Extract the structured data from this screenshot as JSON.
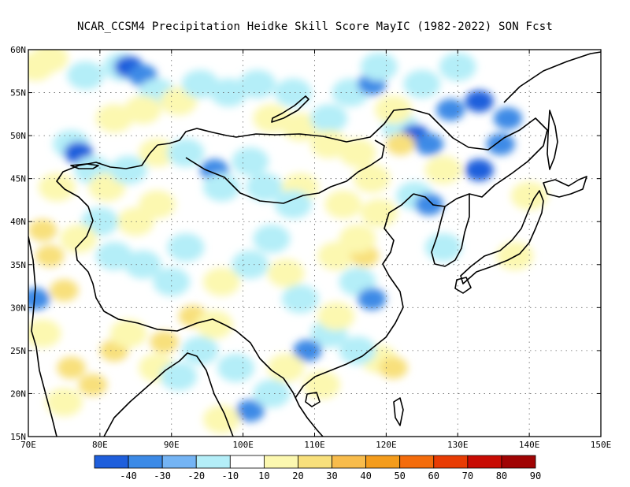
{
  "title": "NCAR_CCSM4  Precipitation Heidke Skill Score MayIC (1982-2022) SON Fcst",
  "lat_labels": [
    "60N",
    "55N",
    "50N",
    "45N",
    "40N",
    "35N",
    "30N",
    "25N",
    "20N",
    "15N"
  ],
  "lon_labels": [
    "70E",
    "80E",
    "90E",
    "100E",
    "110E",
    "120E",
    "130E",
    "140E",
    "150E"
  ],
  "colorbar": {
    "labels": [
      "-40",
      "-30",
      "-20",
      "-10",
      "10",
      "20",
      "30",
      "40",
      "50",
      "60",
      "70",
      "80",
      "90"
    ],
    "colors": [
      "#1f5fdc",
      "#3c8ae6",
      "#74b4f4",
      "#b4eef8",
      "#ffffff",
      "#fcf8b0",
      "#f8e07c",
      "#f8bc4c",
      "#f49c1c",
      "#f46c0c",
      "#e83c04",
      "#c80c04",
      "#a00404"
    ]
  },
  "chart_data": {
    "type": "heatmap",
    "title": "NCAR_CCSM4  Precipitation Heidke Skill Score MayIC (1982-2022) SON Fcst",
    "xlim": [
      70,
      150
    ],
    "ylim": [
      15,
      60
    ],
    "x_ticks": [
      70,
      80,
      90,
      100,
      110,
      120,
      130,
      140,
      150
    ],
    "y_ticks": [
      15,
      20,
      25,
      30,
      35,
      40,
      45,
      50,
      55,
      60
    ],
    "grid": true,
    "region": "land_only",
    "value_range_observed": [
      -40,
      30
    ],
    "patches": [
      {
        "lon": 71,
        "lat": 58,
        "v": 15
      },
      {
        "lon": 73,
        "lat": 59,
        "v": 10
      },
      {
        "lon": 78,
        "lat": 57,
        "v": -10
      },
      {
        "lon": 83,
        "lat": 58,
        "v": -10
      },
      {
        "lon": 84,
        "lat": 58,
        "v": -30
      },
      {
        "lon": 86,
        "lat": 57,
        "v": -20
      },
      {
        "lon": 88,
        "lat": 55,
        "v": -10
      },
      {
        "lon": 82,
        "lat": 52,
        "v": 10
      },
      {
        "lon": 86,
        "lat": 53,
        "v": 15
      },
      {
        "lon": 91,
        "lat": 54,
        "v": 15
      },
      {
        "lon": 94,
        "lat": 56,
        "v": -10
      },
      {
        "lon": 98,
        "lat": 55,
        "v": -10
      },
      {
        "lon": 102,
        "lat": 56,
        "v": -10
      },
      {
        "lon": 107,
        "lat": 55,
        "v": -10
      },
      {
        "lon": 104,
        "lat": 52,
        "v": 10
      },
      {
        "lon": 108,
        "lat": 51,
        "v": 15
      },
      {
        "lon": 112,
        "lat": 52,
        "v": -10
      },
      {
        "lon": 115,
        "lat": 55,
        "v": -10
      },
      {
        "lon": 118,
        "lat": 56,
        "v": -20
      },
      {
        "lon": 119,
        "lat": 58,
        "v": -10
      },
      {
        "lon": 125,
        "lat": 56,
        "v": -10
      },
      {
        "lon": 130,
        "lat": 58,
        "v": -10
      },
      {
        "lon": 129,
        "lat": 53,
        "v": -20
      },
      {
        "lon": 133,
        "lat": 54,
        "v": -30
      },
      {
        "lon": 137,
        "lat": 52,
        "v": -20
      },
      {
        "lon": 136,
        "lat": 49,
        "v": -20
      },
      {
        "lon": 133,
        "lat": 46,
        "v": -30
      },
      {
        "lon": 122,
        "lat": 51,
        "v": -10
      },
      {
        "lon": 124,
        "lat": 50,
        "v": -30
      },
      {
        "lon": 126,
        "lat": 49,
        "v": -20
      },
      {
        "lon": 122,
        "lat": 49,
        "v": 20
      },
      {
        "lon": 121,
        "lat": 53,
        "v": 15
      },
      {
        "lon": 116,
        "lat": 48,
        "v": 15
      },
      {
        "lon": 112,
        "lat": 49,
        "v": 15
      },
      {
        "lon": 118,
        "lat": 45,
        "v": 10
      },
      {
        "lon": 114,
        "lat": 42,
        "v": 15
      },
      {
        "lon": 119,
        "lat": 41,
        "v": 15
      },
      {
        "lon": 124,
        "lat": 43,
        "v": -10
      },
      {
        "lon": 126,
        "lat": 42,
        "v": -20
      },
      {
        "lon": 128,
        "lat": 46,
        "v": 10
      },
      {
        "lon": 76,
        "lat": 49,
        "v": -10
      },
      {
        "lon": 77,
        "lat": 48,
        "v": -30
      },
      {
        "lon": 79,
        "lat": 46,
        "v": -10
      },
      {
        "lon": 74,
        "lat": 44,
        "v": 10
      },
      {
        "lon": 81,
        "lat": 44,
        "v": 10
      },
      {
        "lon": 84,
        "lat": 46,
        "v": -10
      },
      {
        "lon": 88,
        "lat": 48,
        "v": 15
      },
      {
        "lon": 92,
        "lat": 48,
        "v": -10
      },
      {
        "lon": 96,
        "lat": 46,
        "v": -20
      },
      {
        "lon": 97,
        "lat": 44,
        "v": -10
      },
      {
        "lon": 101,
        "lat": 47,
        "v": -10
      },
      {
        "lon": 103,
        "lat": 44,
        "v": -10
      },
      {
        "lon": 108,
        "lat": 44,
        "v": 10
      },
      {
        "lon": 107,
        "lat": 42,
        "v": -10
      },
      {
        "lon": 88,
        "lat": 42,
        "v": 15
      },
      {
        "lon": 85,
        "lat": 40,
        "v": 10
      },
      {
        "lon": 80,
        "lat": 40,
        "v": -10
      },
      {
        "lon": 77,
        "lat": 38,
        "v": 15
      },
      {
        "lon": 72,
        "lat": 39,
        "v": 20
      },
      {
        "lon": 73,
        "lat": 36,
        "v": 25
      },
      {
        "lon": 75,
        "lat": 32,
        "v": 20
      },
      {
        "lon": 71,
        "lat": 31,
        "v": -20
      },
      {
        "lon": 72,
        "lat": 27,
        "v": 15
      },
      {
        "lon": 76,
        "lat": 23,
        "v": 20
      },
      {
        "lon": 79,
        "lat": 21,
        "v": 25
      },
      {
        "lon": 75,
        "lat": 19,
        "v": 15
      },
      {
        "lon": 82,
        "lat": 25,
        "v": 20
      },
      {
        "lon": 84,
        "lat": 27,
        "v": 15
      },
      {
        "lon": 89,
        "lat": 26,
        "v": 25
      },
      {
        "lon": 88,
        "lat": 23,
        "v": 15
      },
      {
        "lon": 91,
        "lat": 22,
        "v": -10
      },
      {
        "lon": 93,
        "lat": 29,
        "v": 20
      },
      {
        "lon": 96,
        "lat": 28,
        "v": 10
      },
      {
        "lon": 94,
        "lat": 25,
        "v": -10
      },
      {
        "lon": 99,
        "lat": 23,
        "v": -10
      },
      {
        "lon": 101,
        "lat": 18,
        "v": -20
      },
      {
        "lon": 104,
        "lat": 20,
        "v": -10
      },
      {
        "lon": 97,
        "lat": 17,
        "v": 10
      },
      {
        "lon": 90,
        "lat": 33,
        "v": -10
      },
      {
        "lon": 92,
        "lat": 37,
        "v": -10
      },
      {
        "lon": 86,
        "lat": 35,
        "v": -10
      },
      {
        "lon": 82,
        "lat": 36,
        "v": -10
      },
      {
        "lon": 97,
        "lat": 33,
        "v": 10
      },
      {
        "lon": 101,
        "lat": 35,
        "v": -10
      },
      {
        "lon": 104,
        "lat": 38,
        "v": -10
      },
      {
        "lon": 106,
        "lat": 34,
        "v": 15
      },
      {
        "lon": 108,
        "lat": 31,
        "v": -10
      },
      {
        "lon": 112,
        "lat": 27,
        "v": -10
      },
      {
        "lon": 109,
        "lat": 25,
        "v": -20
      },
      {
        "lon": 113,
        "lat": 29,
        "v": 10
      },
      {
        "lon": 116,
        "lat": 33,
        "v": -10
      },
      {
        "lon": 118,
        "lat": 31,
        "v": -20
      },
      {
        "lon": 113,
        "lat": 36,
        "v": 15
      },
      {
        "lon": 117,
        "lat": 36,
        "v": 25
      },
      {
        "lon": 116,
        "lat": 38,
        "v": 15
      },
      {
        "lon": 119,
        "lat": 24,
        "v": 15
      },
      {
        "lon": 116,
        "lat": 25,
        "v": -10
      },
      {
        "lon": 121,
        "lat": 23,
        "v": 20
      },
      {
        "lon": 106,
        "lat": 23,
        "v": 10
      },
      {
        "lon": 111,
        "lat": 21,
        "v": 10
      },
      {
        "lon": 128,
        "lat": 37,
        "v": -10
      },
      {
        "lon": 140,
        "lat": 43,
        "v": 15
      },
      {
        "lon": 138,
        "lat": 36,
        "v": 10
      }
    ]
  }
}
